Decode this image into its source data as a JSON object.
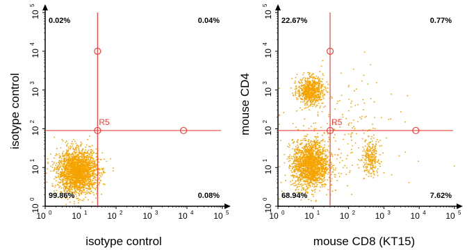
{
  "gate_name": "R5",
  "colors": {
    "events": "#f5a300",
    "gate": "#e8403a",
    "axis": "#000000",
    "text": "#000000"
  },
  "chart_data": [
    {
      "type": "scatter",
      "scale": "log10",
      "xlim": [
        1,
        100000
      ],
      "ylim": [
        1,
        100000
      ],
      "x_ticks": [
        "10",
        "10",
        "10",
        "10",
        "10",
        "10"
      ],
      "x_tick_exponents": [
        "0",
        "1",
        "2",
        "3",
        "4",
        "5"
      ],
      "y_ticks": [
        "10",
        "10",
        "10",
        "10",
        "10",
        "10"
      ],
      "y_tick_exponents": [
        "0",
        "1",
        "2",
        "3",
        "4",
        "5"
      ],
      "xlabel": "isotype control",
      "ylabel": "isotype control",
      "gate": {
        "x": 30,
        "y": 90
      },
      "quadrants": {
        "upper_left": "0.02%",
        "upper_right": "0.04%",
        "lower_left": "99.86%",
        "lower_right": "0.08%"
      },
      "populations": [
        {
          "center": [
            8,
            8
          ],
          "spread_log": [
            0.28,
            0.28
          ],
          "count": 2200
        }
      ]
    },
    {
      "type": "scatter",
      "scale": "log10",
      "xlim": [
        1,
        100000
      ],
      "ylim": [
        1,
        100000
      ],
      "x_ticks": [
        "10",
        "10",
        "10",
        "10",
        "10",
        "10"
      ],
      "x_tick_exponents": [
        "0",
        "1",
        "2",
        "3",
        "4",
        "5"
      ],
      "y_ticks": [
        "10",
        "10",
        "10",
        "10",
        "10",
        "10"
      ],
      "y_tick_exponents": [
        "0",
        "1",
        "2",
        "3",
        "4",
        "5"
      ],
      "xlabel": "mouse CD8 (KT15)",
      "ylabel": "mouse CD4",
      "gate": {
        "x": 30,
        "y": 90
      },
      "quadrants": {
        "upper_left": "22.67%",
        "upper_right": "0.77%",
        "lower_left": "68.94%",
        "lower_right": "7.62%"
      },
      "populations": [
        {
          "center": [
            8,
            1000
          ],
          "spread_log": [
            0.18,
            0.18
          ],
          "count": 700
        },
        {
          "center": [
            8,
            12
          ],
          "spread_log": [
            0.25,
            0.3
          ],
          "count": 1700
        },
        {
          "center": [
            400,
            18
          ],
          "spread_log": [
            0.12,
            0.22
          ],
          "count": 220
        },
        {
          "center": [
            60,
            60
          ],
          "spread_log": [
            0.8,
            0.8
          ],
          "count": 260
        }
      ]
    }
  ]
}
